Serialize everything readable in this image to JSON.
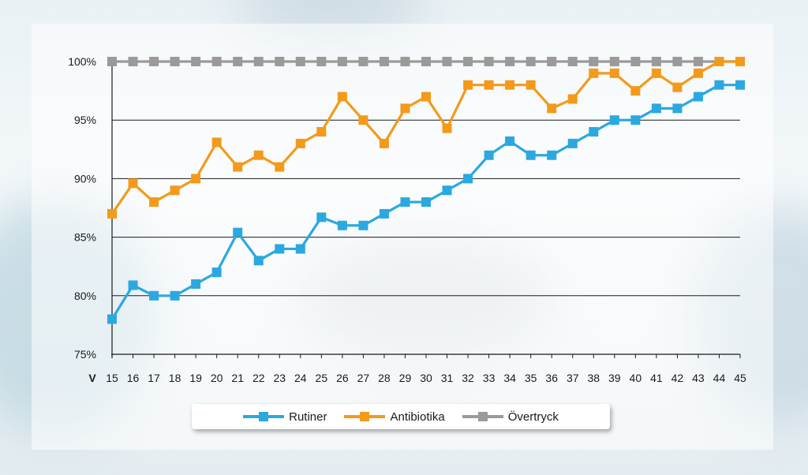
{
  "chart_data": {
    "type": "line",
    "x_prefix": "V",
    "x": [
      15,
      16,
      17,
      18,
      19,
      20,
      21,
      22,
      23,
      24,
      25,
      26,
      27,
      28,
      29,
      30,
      31,
      32,
      33,
      34,
      35,
      36,
      37,
      38,
      39,
      40,
      41,
      42,
      43,
      44,
      45
    ],
    "categories": [
      "15",
      "16",
      "17",
      "18",
      "19",
      "20",
      "21",
      "22",
      "23",
      "24",
      "25",
      "26",
      "27",
      "28",
      "29",
      "30",
      "31",
      "32",
      "33",
      "34",
      "35",
      "36",
      "37",
      "38",
      "39",
      "40",
      "41",
      "42",
      "43",
      "44",
      "45"
    ],
    "ylim": [
      75,
      100
    ],
    "yticks": [
      "75%",
      "80%",
      "85%",
      "90%",
      "95%",
      "100%"
    ],
    "ytick_values": [
      75,
      80,
      85,
      90,
      95,
      100
    ],
    "grid": true,
    "legend_position": "bottom",
    "series": [
      {
        "name": "Rutiner",
        "color": "#2ba8e0",
        "values": [
          78,
          80.9,
          80,
          80,
          81,
          82,
          85.4,
          83,
          84,
          84,
          86.7,
          86,
          86,
          87,
          88,
          88,
          89,
          90,
          92,
          93.2,
          92,
          92,
          93,
          94,
          95,
          95,
          96,
          96,
          97,
          98,
          98
        ]
      },
      {
        "name": "Antibiotika",
        "color": "#f39a1b",
        "values": [
          87,
          89.6,
          88,
          89,
          90,
          93.1,
          91,
          92,
          91,
          93,
          94,
          97,
          95,
          93,
          96,
          97,
          94.3,
          98,
          98,
          98,
          98,
          96,
          96.8,
          99,
          99,
          97.5,
          99,
          97.8,
          99,
          100,
          100
        ]
      },
      {
        "name": "Övertryck",
        "color": "#9a9a9a",
        "values": [
          100,
          100,
          100,
          100,
          100,
          100,
          100,
          100,
          100,
          100,
          100,
          100,
          100,
          100,
          100,
          100,
          100,
          100,
          100,
          100,
          100,
          100,
          100,
          100,
          100,
          100,
          100,
          100,
          100,
          100,
          100
        ]
      }
    ]
  }
}
